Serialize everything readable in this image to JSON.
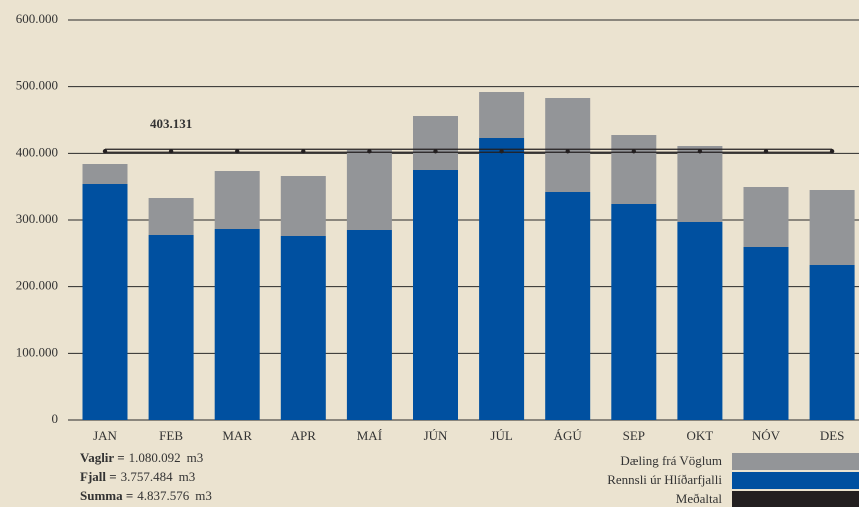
{
  "chart_data": {
    "type": "stacked_bar",
    "categories": [
      "JAN",
      "FEB",
      "MAR",
      "APR",
      "MAÍ",
      "JÚN",
      "JÚL",
      "ÁGÚ",
      "SEP",
      "OKT",
      "NÓV",
      "DES"
    ],
    "series": [
      {
        "name": "Rennsli úr Hlíðarfjalli",
        "color": "#0050a0",
        "values": [
          354000,
          277500,
          286500,
          276000,
          285000,
          375000,
          423000,
          342000,
          324000,
          297000,
          259500,
          232500
        ]
      },
      {
        "name": "Dæling frá Vöglum",
        "color": "#939598",
        "values": [
          30000,
          55500,
          87000,
          90000,
          120000,
          81000,
          69000,
          141000,
          103500,
          114000,
          90000,
          112500
        ]
      }
    ],
    "average_line": {
      "name": "Meðaltal",
      "color": "#231f20",
      "value": 403131,
      "value_label": "403.131"
    },
    "ylim": [
      0,
      600000
    ],
    "yticks": [
      0,
      {
        "value": 100000,
        "label": "100.000"
      },
      {
        "value": 200000,
        "label": "200.000"
      },
      {
        "value": 300000,
        "label": "300.000"
      },
      {
        "value": 400000,
        "label": "400.000"
      },
      {
        "value": 500000,
        "label": "500.000"
      },
      {
        "value": 600000,
        "label": "600.000"
      }
    ],
    "grid": true,
    "summary": [
      {
        "label": "Vaglir =",
        "value": "1.080.092",
        "unit": "m3"
      },
      {
        "label": "Fjall =",
        "value": "3.757.484",
        "unit": "m3"
      },
      {
        "label": "Summa =",
        "value": "4.837.576",
        "unit": "m3"
      }
    ]
  }
}
